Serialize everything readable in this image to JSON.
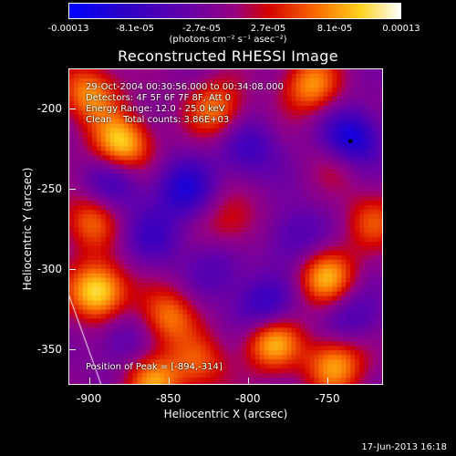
{
  "colorbar": {
    "ticks": [
      "-0.00013",
      "-8.1e-05",
      "-2.7e-05",
      "2.7e-05",
      "8.1e-05",
      "0.00013"
    ],
    "units": "(photons cm⁻² s⁻¹ asec⁻²)",
    "range": [
      -0.00013,
      0.00013
    ]
  },
  "chart_data": {
    "type": "heatmap",
    "title": "Reconstructed RHESSI Image",
    "xlabel": "Heliocentric X (arcsec)",
    "ylabel": "Heliocentric Y (arcsec)",
    "xlim": [
      -913,
      -715
    ],
    "ylim": [
      -372,
      -175
    ],
    "x_ticks": [
      "-900",
      "-850",
      "-800",
      "-750"
    ],
    "y_ticks": [
      "-200",
      "-250",
      "-300",
      "-350"
    ],
    "annotations": {
      "line1": "29-Oct-2004 00:30:56.000 to 00:34:08.000",
      "line2": "Detectors: 4F 5F 6F 7F 8F, Att 0",
      "line3": "Energy Range: 12.0 - 25.0 keV",
      "line4": "Clean    Total counts: 3.86E+03",
      "peak": "Position of Peak = [-894,-314]"
    },
    "peak_position": [
      -894,
      -314
    ],
    "blobs": [
      {
        "x": -880,
        "y": -222,
        "v": 0.00012
      },
      {
        "x": -895,
        "y": -314,
        "v": 0.00013
      },
      {
        "x": -750,
        "y": -305,
        "v": 0.0001
      },
      {
        "x": -785,
        "y": -345,
        "v": 0.00011
      },
      {
        "x": -745,
        "y": -360,
        "v": 0.0001
      },
      {
        "x": -900,
        "y": -190,
        "v": 9e-05
      },
      {
        "x": -820,
        "y": -200,
        "v": 8e-05
      },
      {
        "x": -760,
        "y": -185,
        "v": 9e-05
      },
      {
        "x": -850,
        "y": -330,
        "v": 8e-05
      },
      {
        "x": -720,
        "y": -270,
        "v": 6e-05
      },
      {
        "x": -900,
        "y": -270,
        "v": 7e-05
      },
      {
        "x": -860,
        "y": -370,
        "v": 9e-05
      },
      {
        "x": -740,
        "y": -230,
        "v": 6e-05
      },
      {
        "x": -810,
        "y": -270,
        "v": 5e-05
      },
      {
        "x": -830,
        "y": -360,
        "v": 6e-05
      },
      {
        "x": -735,
        "y": -220,
        "v": -0.00013
      },
      {
        "x": -840,
        "y": -250,
        "v": -8e-05
      },
      {
        "x": -885,
        "y": -245,
        "v": -6e-05
      },
      {
        "x": -790,
        "y": -325,
        "v": -8e-05
      },
      {
        "x": -800,
        "y": -225,
        "v": -6e-05
      },
      {
        "x": -860,
        "y": -280,
        "v": -5e-05
      },
      {
        "x": -770,
        "y": -280,
        "v": -5e-05
      },
      {
        "x": -880,
        "y": -345,
        "v": -4e-05
      },
      {
        "x": -735,
        "y": -330,
        "v": -5e-05
      },
      {
        "x": -820,
        "y": -300,
        "v": -4e-05
      }
    ],
    "limb_line": {
      "x": [
        -913,
        -893
      ],
      "y": [
        -317,
        -372
      ]
    }
  },
  "footer": {
    "date": "17-Jun-2013 16:18"
  }
}
